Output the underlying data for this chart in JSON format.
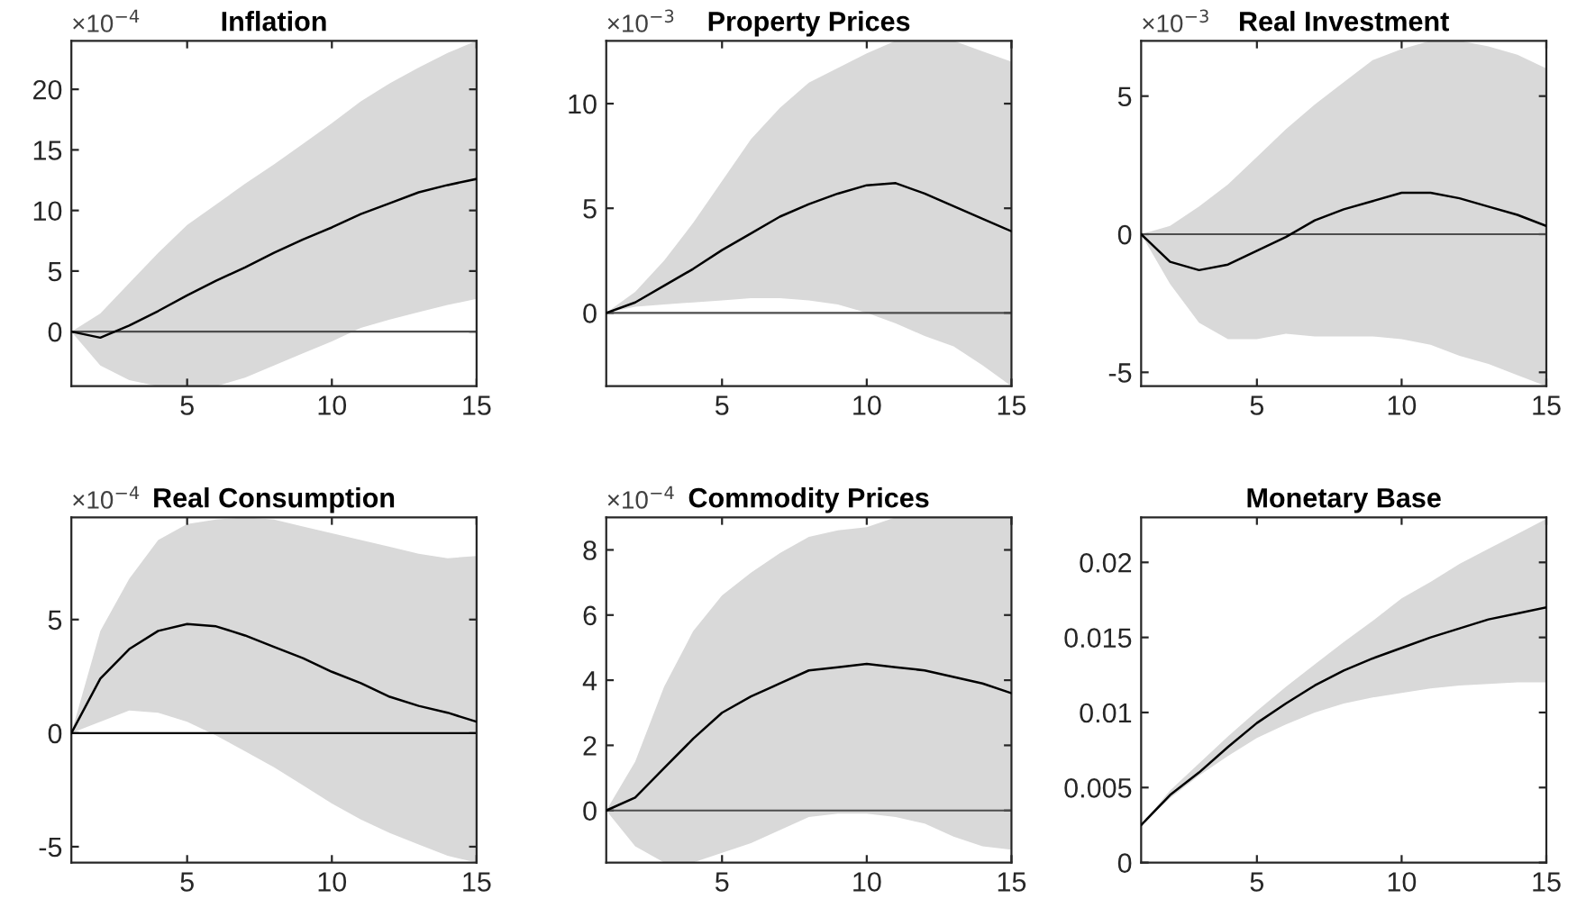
{
  "chart_data": [
    {
      "type": "line",
      "title": "Inflation",
      "annotations": [
        "×10$^{−4}$"
      ],
      "x": [
        1,
        2,
        3,
        4,
        5,
        6,
        7,
        8,
        9,
        10,
        11,
        12,
        13,
        14,
        15
      ],
      "xlim": [
        1,
        15
      ],
      "xticks": [
        5,
        10,
        15
      ],
      "ylim": [
        -4.5,
        24
      ],
      "yticks": [
        0,
        5,
        10,
        15,
        20
      ],
      "ref_lines": [
        {
          "axis": "y",
          "value": 0,
          "color": "#4d4d4d"
        }
      ],
      "series": [
        {
          "color": "#000000",
          "values": [
            0,
            -0.5,
            0.5,
            1.7,
            3,
            4.2,
            5.3,
            6.5,
            7.6,
            8.6,
            9.7,
            10.6,
            11.5,
            12.1,
            12.6
          ],
          "upper": [
            0,
            1.5,
            4,
            6.5,
            8.8,
            10.5,
            12.2,
            13.8,
            15.5,
            17.2,
            19,
            20.5,
            21.8,
            23,
            24
          ],
          "lower": [
            0,
            -2.8,
            -4,
            -4.5,
            -4.5,
            -4.5,
            -3.8,
            -2.8,
            -1.8,
            -0.8,
            0.3,
            1,
            1.6,
            2.2,
            2.7
          ]
        }
      ]
    },
    {
      "type": "line",
      "title": "Property Prices",
      "annotations": [
        "×10$^{−3}$"
      ],
      "x": [
        1,
        2,
        3,
        4,
        5,
        6,
        7,
        8,
        9,
        10,
        11,
        12,
        13,
        14,
        15
      ],
      "xlim": [
        1,
        15
      ],
      "xticks": [
        5,
        10,
        15
      ],
      "ylim": [
        -3.5,
        13
      ],
      "yticks": [
        0,
        5,
        10
      ],
      "ref_lines": [
        {
          "axis": "y",
          "value": 0,
          "color": "#4d4d4d"
        }
      ],
      "series": [
        {
          "color": "#000000",
          "values": [
            0,
            0.5,
            1.3,
            2.1,
            3,
            3.8,
            4.6,
            5.2,
            5.7,
            6.1,
            6.2,
            5.7,
            5.1,
            4.5,
            3.9
          ],
          "upper": [
            0,
            1,
            2.5,
            4.3,
            6.3,
            8.3,
            9.8,
            11,
            11.7,
            12.4,
            13,
            13,
            13,
            12.5,
            12
          ],
          "lower": [
            0,
            0.3,
            0.4,
            0.5,
            0.6,
            0.7,
            0.7,
            0.6,
            0.4,
            0,
            -0.5,
            -1.1,
            -1.6,
            -2.5,
            -3.5
          ]
        }
      ]
    },
    {
      "type": "line",
      "title": "Real Investment",
      "annotations": [
        "×10$^{−3}$"
      ],
      "x": [
        1,
        2,
        3,
        4,
        5,
        6,
        7,
        8,
        9,
        10,
        11,
        12,
        13,
        14,
        15
      ],
      "xlim": [
        1,
        15
      ],
      "xticks": [
        5,
        10,
        15
      ],
      "ylim": [
        -5.5,
        7
      ],
      "yticks": [
        -5,
        0,
        5
      ],
      "ref_lines": [
        {
          "axis": "y",
          "value": 0,
          "color": "#4d4d4d"
        }
      ],
      "series": [
        {
          "color": "#000000",
          "values": [
            0,
            -1,
            -1.3,
            -1.1,
            -0.6,
            -0.1,
            0.5,
            0.9,
            1.2,
            1.5,
            1.5,
            1.3,
            1,
            0.7,
            0.3
          ],
          "upper": [
            0,
            0.3,
            1,
            1.8,
            2.8,
            3.8,
            4.7,
            5.5,
            6.3,
            6.7,
            7,
            7,
            6.8,
            6.5,
            6
          ],
          "lower": [
            0,
            -1.8,
            -3.2,
            -3.8,
            -3.8,
            -3.6,
            -3.7,
            -3.7,
            -3.7,
            -3.8,
            -4,
            -4.4,
            -4.7,
            -5.1,
            -5.5
          ]
        }
      ]
    },
    {
      "type": "line",
      "title": "Real Consumption",
      "annotations": [
        "×10$^{−4}$"
      ],
      "x": [
        1,
        2,
        3,
        4,
        5,
        6,
        7,
        8,
        9,
        10,
        11,
        12,
        13,
        14,
        15
      ],
      "xlim": [
        1,
        15
      ],
      "xticks": [
        5,
        10,
        15
      ],
      "ylim": [
        -5.7,
        9.5
      ],
      "yticks": [
        -5,
        0,
        5
      ],
      "ref_lines": [
        {
          "axis": "y",
          "value": 0,
          "color": "#000000"
        }
      ],
      "series": [
        {
          "color": "#000000",
          "values": [
            0,
            2.4,
            3.7,
            4.5,
            4.8,
            4.7,
            4.3,
            3.8,
            3.3,
            2.7,
            2.2,
            1.6,
            1.2,
            0.9,
            0.5
          ],
          "upper": [
            0,
            4.5,
            6.8,
            8.5,
            9.2,
            9.4,
            9.5,
            9.4,
            9.1,
            8.8,
            8.5,
            8.2,
            7.9,
            7.7,
            7.8
          ],
          "lower": [
            0,
            0.5,
            1,
            0.9,
            0.5,
            -0.1,
            -0.8,
            -1.5,
            -2.3,
            -3.1,
            -3.8,
            -4.4,
            -4.9,
            -5.4,
            -5.7
          ]
        }
      ]
    },
    {
      "type": "line",
      "title": "Commodity Prices",
      "annotations": [
        "×10$^{−4}$"
      ],
      "x": [
        1,
        2,
        3,
        4,
        5,
        6,
        7,
        8,
        9,
        10,
        11,
        12,
        13,
        14,
        15
      ],
      "xlim": [
        1,
        15
      ],
      "xticks": [
        5,
        10,
        15
      ],
      "ylim": [
        -1.6,
        9
      ],
      "yticks": [
        0,
        2,
        4,
        6,
        8
      ],
      "ref_lines": [
        {
          "axis": "y",
          "value": 0,
          "color": "#4d4d4d"
        }
      ],
      "series": [
        {
          "color": "#000000",
          "values": [
            0,
            0.4,
            1.3,
            2.2,
            3,
            3.5,
            3.9,
            4.3,
            4.4,
            4.5,
            4.4,
            4.3,
            4.1,
            3.9,
            3.6
          ],
          "upper": [
            0,
            1.5,
            3.8,
            5.5,
            6.6,
            7.3,
            7.9,
            8.4,
            8.6,
            8.7,
            9,
            9,
            9,
            9,
            9
          ],
          "lower": [
            0,
            -1.1,
            -1.6,
            -1.6,
            -1.3,
            -1.0,
            -0.6,
            -0.2,
            -0.1,
            -0.1,
            -0.2,
            -0.4,
            -0.8,
            -1.1,
            -1.2
          ]
        }
      ]
    },
    {
      "type": "line",
      "title": "Monetary Base",
      "x": [
        1,
        2,
        3,
        4,
        5,
        6,
        7,
        8,
        9,
        10,
        11,
        12,
        13,
        14,
        15
      ],
      "xlim": [
        1,
        15
      ],
      "xticks": [
        5,
        10,
        15
      ],
      "ylim": [
        0,
        0.023
      ],
      "yticks": [
        0,
        0.005,
        0.01,
        0.015,
        0.02
      ],
      "series": [
        {
          "color": "#000000",
          "values": [
            0.0025,
            0.0045,
            0.006,
            0.0077,
            0.0093,
            0.0106,
            0.0118,
            0.0128,
            0.0136,
            0.0143,
            0.015,
            0.0156,
            0.0162,
            0.0166,
            0.017
          ],
          "upper": [
            0.0025,
            0.0048,
            0.0066,
            0.0084,
            0.0101,
            0.0117,
            0.0132,
            0.0147,
            0.0161,
            0.0176,
            0.0187,
            0.0199,
            0.0209,
            0.0219,
            0.0229
          ],
          "lower": [
            0.0025,
            0.0043,
            0.0058,
            0.0071,
            0.0083,
            0.0092,
            0.01,
            0.0106,
            0.011,
            0.0113,
            0.0116,
            0.0118,
            0.0119,
            0.012,
            0.012
          ]
        }
      ]
    }
  ]
}
